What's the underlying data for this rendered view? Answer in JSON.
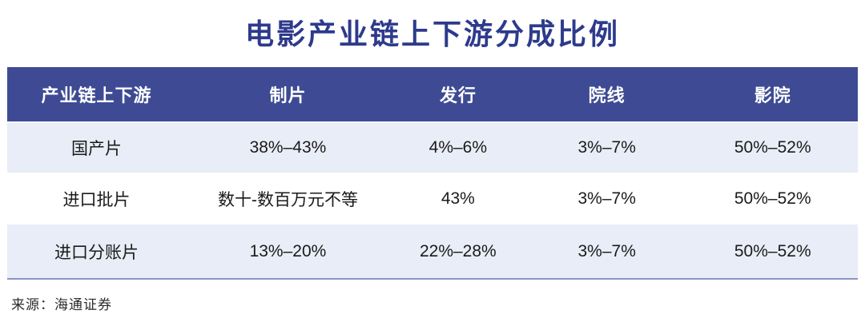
{
  "title": "电影产业链上下游分成比例",
  "source_note": "来源：海通证券",
  "colors": {
    "title_text": "#2D3A8C",
    "header_bg": "#3E4B94",
    "header_text": "#FFFFFF",
    "row_alt_bg": "#E9EDF7",
    "row_plain_bg": "#FFFFFF",
    "cell_text": "#1A1A1A",
    "bottom_border": "#8C95C2"
  },
  "chart_data": {
    "type": "table",
    "title": "电影产业链上下游分成比例",
    "columns": [
      "产业链上下游",
      "制片",
      "发行",
      "院线",
      "影院"
    ],
    "rows": [
      [
        "国产片",
        "38%–43%",
        "4%–6%",
        "3%–7%",
        "50%–52%"
      ],
      [
        "进口批片",
        "数十-数百万元不等",
        "43%",
        "3%–7%",
        "50%–52%"
      ],
      [
        "进口分账片",
        "13%–20%",
        "22%–28%",
        "3%–7%",
        "50%–52%"
      ]
    ],
    "source": "来源：海通证券",
    "layout": {
      "header_style": "dark-blue band, white bold text",
      "zebra": "rows 1 and 3 light lavender, row 2 white",
      "grid": "no inner vertical lines, bottom rule only"
    }
  }
}
